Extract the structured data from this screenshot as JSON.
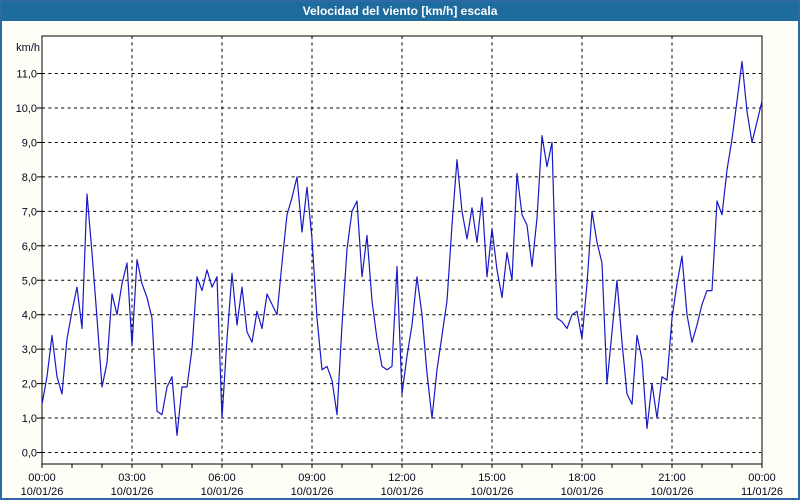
{
  "window": {
    "title": "Velocidad del viento [km/h] escala"
  },
  "colors": {
    "title_bg": "#1e6c9e",
    "title_text": "#ffffff",
    "frame_border": "#2e68a5",
    "page_bg": "#fffef6",
    "plot_bg": "#fffffd",
    "axis": "#000000",
    "grid": "#000000",
    "line": "#1818c8",
    "label_text": "#050520"
  },
  "chart_data": {
    "type": "line",
    "title": "Velocidad del viento [km/h] escala",
    "ylabel": "km/h",
    "unit_label": "km/h",
    "ylim": [
      0,
      12
    ],
    "xlim_hours": [
      0,
      24
    ],
    "grid": true,
    "legend": "none",
    "y_ticks": [
      0,
      1,
      2,
      3,
      4,
      5,
      6,
      7,
      8,
      9,
      10,
      11
    ],
    "y_tick_labels": [
      "0,0",
      "1,0",
      "2,0",
      "3,0",
      "4,0",
      "5,0",
      "6,0",
      "7,0",
      "8,0",
      "9,0",
      "10,0",
      "11,0"
    ],
    "x_major_ticks": [
      {
        "hour": 0,
        "time": "00:00",
        "date": "10/01/26"
      },
      {
        "hour": 3,
        "time": "03:00",
        "date": "10/01/26"
      },
      {
        "hour": 6,
        "time": "06:00",
        "date": "10/01/26"
      },
      {
        "hour": 9,
        "time": "09:00",
        "date": "10/01/26"
      },
      {
        "hour": 12,
        "time": "12:00",
        "date": "10/01/26"
      },
      {
        "hour": 15,
        "time": "15:00",
        "date": "10/01/26"
      },
      {
        "hour": 18,
        "time": "18:00",
        "date": "10/01/26"
      },
      {
        "hour": 21,
        "time": "21:00",
        "date": "10/01/26"
      },
      {
        "hour": 24,
        "time": "00:00",
        "date": "11/01/26"
      }
    ],
    "x_minor_tick_every_hours": 1,
    "start_time": "00:00",
    "sample_interval_minutes": 10,
    "values": [
      1.4,
      2.2,
      3.4,
      2.2,
      1.7,
      3.3,
      4.1,
      4.8,
      3.6,
      7.5,
      5.8,
      3.9,
      1.9,
      2.6,
      4.6,
      4.0,
      4.9,
      5.5,
      3.1,
      5.6,
      4.9,
      4.5,
      3.9,
      1.2,
      1.1,
      1.9,
      2.2,
      0.5,
      1.9,
      1.9,
      3.0,
      5.1,
      4.7,
      5.3,
      4.8,
      5.1,
      1.0,
      3.3,
      5.2,
      3.7,
      4.8,
      3.5,
      3.2,
      4.1,
      3.6,
      4.6,
      4.3,
      4.0,
      5.5,
      6.9,
      7.4,
      8.0,
      6.4,
      7.7,
      6.2,
      3.9,
      2.4,
      2.5,
      2.1,
      1.1,
      3.7,
      5.9,
      7.0,
      7.3,
      5.1,
      6.3,
      4.4,
      3.3,
      2.5,
      2.4,
      2.5,
      5.4,
      1.7,
      2.8,
      3.7,
      5.1,
      4.0,
      2.3,
      1.0,
      2.4,
      3.4,
      4.4,
      6.6,
      8.5,
      7.0,
      6.2,
      7.1,
      6.1,
      7.4,
      5.1,
      6.5,
      5.3,
      4.5,
      5.8,
      5.0,
      8.1,
      6.9,
      6.6,
      5.4,
      6.8,
      9.2,
      8.3,
      9.0,
      3.9,
      3.8,
      3.6,
      4.0,
      4.1,
      3.3,
      4.9,
      7.0,
      6.1,
      5.5,
      2.0,
      3.5,
      5.0,
      3.2,
      1.7,
      1.4,
      3.4,
      2.7,
      0.7,
      2.0,
      1.0,
      2.2,
      2.1,
      3.9,
      4.9,
      5.7,
      4.0,
      3.2,
      3.7,
      4.3,
      4.7,
      4.7,
      7.3,
      6.9,
      8.2,
      9.1,
      10.2,
      11.35,
      9.9,
      9.0,
      9.6,
      10.2
    ]
  }
}
